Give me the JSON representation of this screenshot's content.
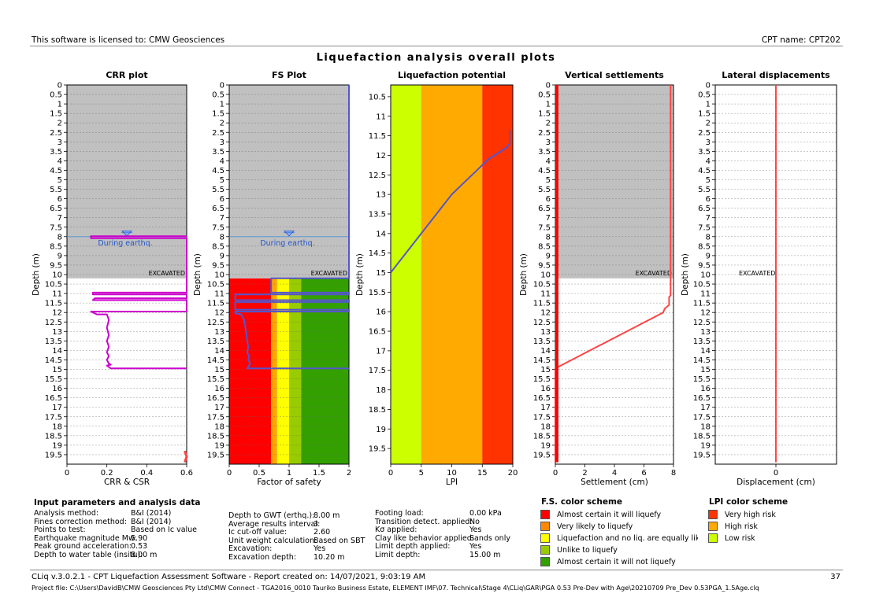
{
  "header": {
    "license": "This software is licensed to: CMW Geosciences",
    "cpt_name": "CPT name: CPT202"
  },
  "title": "Liquefaction analysis overall plots",
  "colors": {
    "gray": "#c0c0c0",
    "red": "#ff0000",
    "orange": "#ffa500",
    "yellow": "#ffff00",
    "lightgreen": "#99cc00",
    "green": "#33a000",
    "lpi_red": "#ff3300",
    "lpi_orange": "#ffaa00",
    "lpi_green": "#ccff00",
    "purple": "#cc00cc",
    "blue": "#5555cc",
    "settle": "#ff4444"
  },
  "chart_data": [
    {
      "type": "line",
      "title": "CRR plot",
      "xlabel": "CRR & CSR",
      "ylabel": "Depth (m)",
      "xlim": [
        0,
        0.6
      ],
      "ylim": [
        0,
        20
      ],
      "xticks": [
        "0",
        "0.2",
        "0.4",
        "0.6"
      ],
      "yticks": [
        "0",
        "0.5",
        "1",
        "1.5",
        "2",
        "2.5",
        "3",
        "3.5",
        "4",
        "4.5",
        "5",
        "5.5",
        "6",
        "6.5",
        "7",
        "7.5",
        "8",
        "8.5",
        "9",
        "9.5",
        "10",
        "10.5",
        "11",
        "11.5",
        "12",
        "12.5",
        "13",
        "13.5",
        "14",
        "14.5",
        "15",
        "15.5",
        "16",
        "16.5",
        "17",
        "17.5",
        "18",
        "18.5",
        "19",
        "19.5"
      ],
      "excavated_depth": 10.2,
      "gwt_depth": 8.0,
      "gwt_label": "During earthq.",
      "excavated_label": "EXCAVATED",
      "series": [
        {
          "x": [
            0.6,
            0.12,
            0.12,
            0.6,
            0.6,
            0.13,
            0.13,
            0.6,
            0.6,
            0.14,
            0.13,
            0.6,
            0.6,
            0.12,
            0.13,
            0.14,
            0.15,
            0.2,
            0.21,
            0.2,
            0.21,
            0.2,
            0.21,
            0.2,
            0.21,
            0.2,
            0.21,
            0.22,
            0.2,
            0.22,
            0.6
          ],
          "y": [
            7.98,
            7.98,
            8.08,
            8.08,
            10.95,
            10.95,
            11.05,
            11.05,
            11.25,
            11.25,
            11.35,
            11.35,
            11.95,
            11.95,
            12.0,
            12.05,
            12.1,
            12.1,
            12.4,
            12.8,
            13.2,
            13.5,
            13.8,
            14.1,
            14.3,
            14.5,
            14.7,
            14.75,
            14.8,
            14.95,
            14.95
          ]
        },
        {
          "x": [
            0.59,
            0.6,
            0.59
          ],
          "y": [
            19.3,
            19.6,
            19.9
          ]
        }
      ]
    },
    {
      "type": "line",
      "title": "FS Plot",
      "xlabel": "Factor of safety",
      "ylabel": "Depth (m)",
      "xlim": [
        0,
        2
      ],
      "ylim": [
        0,
        20
      ],
      "xticks": [
        "0",
        "0.5",
        "1",
        "1.5",
        "2"
      ],
      "yticks": [
        "0",
        "0.5",
        "1",
        "1.5",
        "2",
        "2.5",
        "3",
        "3.5",
        "4",
        "4.5",
        "5",
        "5.5",
        "6",
        "6.5",
        "7",
        "7.5",
        "8",
        "8.5",
        "9",
        "9.5",
        "10",
        "10.5",
        "11",
        "11.5",
        "12",
        "12.5",
        "13",
        "13.5",
        "14",
        "14.5",
        "15",
        "15.5",
        "16",
        "16.5",
        "17",
        "17.5",
        "18",
        "18.5",
        "19",
        "19.5"
      ],
      "excavated_depth": 10.2,
      "gwt_depth": 8.0,
      "gwt_label": "During earthq.",
      "excavated_label": "EXCAVATED",
      "bands": [
        0.0,
        0.7,
        0.8,
        1.0,
        1.2,
        2.0
      ],
      "series": [
        {
          "x": [
            2,
            2,
            0.7,
            0.7,
            2,
            2,
            0.1,
            0.1,
            2,
            2,
            0.1,
            0.1,
            2,
            2,
            0.1,
            0.1,
            0.2,
            0.25,
            0.27,
            0.29,
            0.3,
            0.32,
            0.3,
            0.33,
            0.32,
            0.35,
            0.3,
            2
          ],
          "y": [
            0,
            10.2,
            10.2,
            10.95,
            10.95,
            11.05,
            11.05,
            11.35,
            11.35,
            11.45,
            11.45,
            11.85,
            11.85,
            11.95,
            11.95,
            12.05,
            12.1,
            12.4,
            12.8,
            13.2,
            13.5,
            13.8,
            14.1,
            14.3,
            14.5,
            14.7,
            14.95,
            14.95
          ]
        }
      ]
    },
    {
      "type": "line",
      "title": "Liquefaction potential",
      "xlabel": "LPI",
      "ylabel": "Depth (m)",
      "xlim": [
        0,
        20
      ],
      "ylim": [
        10.2,
        19.9
      ],
      "xticks": [
        "0",
        "5",
        "10",
        "15",
        "20"
      ],
      "yticks": [
        "10.5",
        "11",
        "11.5",
        "12",
        "12.5",
        "13",
        "13.5",
        "14",
        "14.5",
        "15",
        "15.5",
        "16",
        "16.5",
        "17",
        "17.5",
        "18",
        "18.5",
        "19",
        "19.5"
      ],
      "bands": [
        0,
        5,
        15,
        20
      ],
      "series": [
        {
          "x": [
            0,
            2,
            4,
            6,
            8,
            10,
            12,
            14,
            16,
            17.5,
            19,
            19.5,
            19.5
          ],
          "y": [
            15.0,
            14.6,
            14.2,
            13.8,
            13.4,
            13.0,
            12.7,
            12.4,
            12.1,
            11.95,
            11.8,
            11.7,
            11.35
          ]
        }
      ]
    },
    {
      "type": "line",
      "title": "Vertical settlements",
      "xlabel": "Settlement (cm)",
      "ylabel": "Depth (m)",
      "xlim": [
        0,
        8
      ],
      "ylim": [
        0,
        20
      ],
      "xticks": [
        "0",
        "2",
        "4",
        "6",
        "8"
      ],
      "yticks": [
        "0",
        "0.5",
        "1",
        "1.5",
        "2",
        "2.5",
        "3",
        "3.5",
        "4",
        "4.5",
        "5",
        "5.5",
        "6",
        "6.5",
        "7",
        "7.5",
        "8",
        "8.5",
        "9",
        "9.5",
        "10",
        "10.5",
        "11",
        "11.5",
        "12",
        "12.5",
        "13",
        "13.5",
        "14",
        "14.5",
        "15",
        "15.5",
        "16",
        "16.5",
        "17",
        "17.5",
        "18",
        "18.5",
        "19",
        "19.5"
      ],
      "excavated_depth": 10.2,
      "excavated_label": "EXCAVATED",
      "series": [
        {
          "x": [
            7.8,
            7.8,
            7.7,
            7.7,
            7.4,
            7.3,
            0,
            0
          ],
          "y": [
            0,
            11.1,
            11.2,
            11.6,
            11.8,
            12.0,
            14.95,
            19.9
          ]
        },
        {
          "x": [
            0.1,
            0.1
          ],
          "y": [
            0,
            19.9
          ]
        }
      ]
    },
    {
      "type": "line",
      "title": "Lateral displacements",
      "xlabel": "Displacement (cm)",
      "ylabel": "Depth (m)",
      "xlim": [
        -1,
        1
      ],
      "ylim": [
        0,
        20
      ],
      "xticks": [
        "0"
      ],
      "yticks": [
        "0",
        "0.5",
        "1",
        "1.5",
        "2",
        "2.5",
        "3",
        "3.5",
        "4",
        "4.5",
        "5",
        "5.5",
        "6",
        "6.5",
        "7",
        "7.5",
        "8",
        "8.5",
        "9",
        "9.5",
        "10",
        "10.5",
        "11",
        "11.5",
        "12",
        "12.5",
        "13",
        "13.5",
        "14",
        "14.5",
        "15",
        "15.5",
        "16",
        "16.5",
        "17",
        "17.5",
        "18",
        "18.5",
        "19",
        "19.5"
      ],
      "excavated_depth": 10.2,
      "excavated_label": "EXCAVATED",
      "series": [
        {
          "x": [
            0,
            0
          ],
          "y": [
            0,
            19.9
          ]
        }
      ]
    }
  ],
  "params": {
    "heading": "Input parameters and analysis data",
    "col1": [
      {
        "label": "Analysis method:",
        "value": "B&I (2014)"
      },
      {
        "label": "Fines correction method:",
        "value": "B&I (2014)"
      },
      {
        "label": "Points to test:",
        "value": "Based on Ic value"
      },
      {
        "label": "Earthquake magnitude Mw:",
        "value": "5.90"
      },
      {
        "label": "Peak ground acceleration:",
        "value": "0.53"
      },
      {
        "label": "Depth to water table (insitu):",
        "value": "8.00 m"
      }
    ],
    "col2": [
      {
        "label": "Depth to GWT (erthq.):",
        "value": "8.00 m"
      },
      {
        "label": "Average results interval:",
        "value": "3"
      },
      {
        "label": "Ic cut-off value:",
        "value": "2.60"
      },
      {
        "label": "Unit weight calculation:",
        "value": "Based on SBT"
      },
      {
        "label": "Excavation:",
        "value": "Yes"
      },
      {
        "label": "Excavation depth:",
        "value": "10.20 m"
      }
    ],
    "col3": [
      {
        "label": "Footing load:",
        "value": "0.00 kPa"
      },
      {
        "label": "Transition detect. applied:",
        "value": "No"
      },
      {
        "label": "Kσ applied:",
        "value": "Yes"
      },
      {
        "label": "Clay like behavior applied:",
        "value": "Sands only"
      },
      {
        "label": "Limit depth applied:",
        "value": "Yes"
      },
      {
        "label": "Limit depth:",
        "value": "15.00 m"
      }
    ]
  },
  "fs_scheme": {
    "heading": "F.S. color scheme",
    "items": [
      {
        "label": "Almost certain it will liquefy",
        "color": "#ff0000"
      },
      {
        "label": "Very likely to liquefy",
        "color": "#ff8800"
      },
      {
        "label": "Liquefaction and no liq. are equally likely",
        "color": "#ffff00"
      },
      {
        "label": "Unlike to liquefy",
        "color": "#99cc00"
      },
      {
        "label": "Almost certain it will not liquefy",
        "color": "#33a000"
      }
    ]
  },
  "lpi_scheme": {
    "heading": "LPI color scheme",
    "items": [
      {
        "label": "Very high risk",
        "color": "#ff3300"
      },
      {
        "label": "High risk",
        "color": "#ffaa00"
      },
      {
        "label": "Low risk",
        "color": "#ccff00"
      }
    ]
  },
  "footer": {
    "line1": "CLiq v.3.0.2.1 - CPT Liquefaction Assessment Software - Report created on: 14/07/2021, 9:03:19 AM",
    "page": "37",
    "line2": "Project file: C:\\Users\\DavidB\\CMW Geosciences Pty Ltd\\CMW Connect - TGA2016_0010 Tauriko Business Estate, ELEMENT IMF\\07. Technical\\Stage 4\\CLiq\\GAR\\PGA 0.53 Pre-Dev with Age\\20210709 Pre_Dev 0.53PGA_1.5Age.clq"
  }
}
